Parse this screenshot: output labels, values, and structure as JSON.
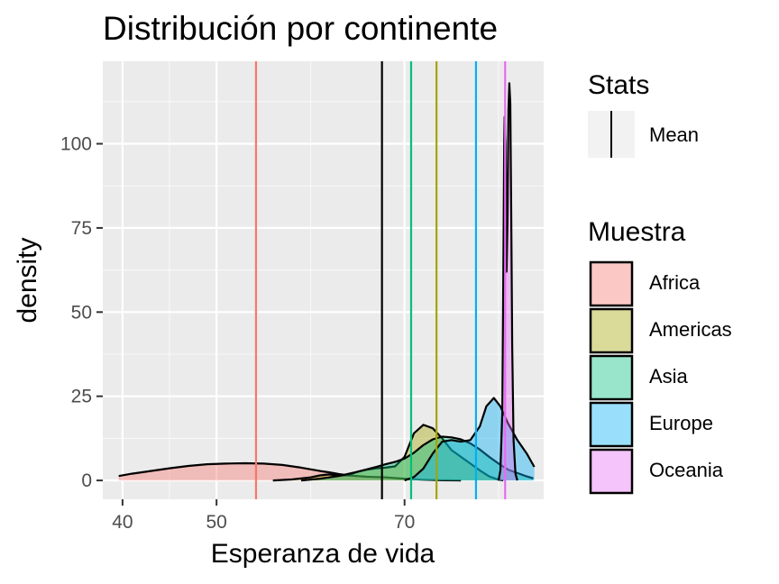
{
  "chart_data": {
    "type": "area",
    "title": "Distribución por continente",
    "xlabel": "Esperanza de vida",
    "ylabel": "density",
    "xlim": [
      37.9,
      84.8
    ],
    "ylim": [
      -5.6,
      124.5
    ],
    "x_ticks": [
      {
        "value": 40,
        "label": "40"
      },
      {
        "value": 50,
        "label": "50"
      },
      {
        "value": 70,
        "label": "70"
      }
    ],
    "x_minor_ticks": [
      45,
      60,
      80
    ],
    "y_ticks": [
      {
        "value": 0,
        "label": "0"
      },
      {
        "value": 25,
        "label": "25"
      },
      {
        "value": 50,
        "label": "50"
      },
      {
        "value": 75,
        "label": "75"
      },
      {
        "value": 100,
        "label": "100"
      }
    ],
    "y_minor_ticks": [
      12.5,
      37.5,
      62.5,
      87.5,
      112.5
    ],
    "grid": true,
    "panel_background": "#ebebeb",
    "legend_position": "right",
    "fill_opacity": 0.4,
    "series": [
      {
        "name": "Africa",
        "color": "#F8766D",
        "mean": 54.2,
        "points": [
          [
            39.6,
            1.3
          ],
          [
            41,
            2.0
          ],
          [
            43,
            2.8
          ],
          [
            45,
            3.6
          ],
          [
            47,
            4.3
          ],
          [
            49,
            4.8
          ],
          [
            51,
            5.0
          ],
          [
            53,
            5.1
          ],
          [
            55,
            5.0
          ],
          [
            57,
            4.6
          ],
          [
            59,
            3.8
          ],
          [
            61,
            2.8
          ],
          [
            62,
            2.4
          ],
          [
            63,
            1.9
          ],
          [
            64,
            1.5
          ],
          [
            66,
            1.1
          ],
          [
            68,
            0.9
          ],
          [
            70,
            0.5
          ],
          [
            72,
            0.2
          ],
          [
            74,
            0.05
          ],
          [
            76,
            0
          ]
        ]
      },
      {
        "name": "Americas",
        "color": "#A3A500",
        "mean": 73.4,
        "points": [
          [
            56,
            0
          ],
          [
            58,
            0.3
          ],
          [
            60,
            0.9
          ],
          [
            61,
            1.5
          ],
          [
            62,
            1.8
          ],
          [
            63,
            1.4
          ],
          [
            64,
            1.6
          ],
          [
            65,
            2.6
          ],
          [
            66,
            3.2
          ],
          [
            67,
            3.6
          ],
          [
            68,
            3.8
          ],
          [
            69,
            4.2
          ],
          [
            70,
            7.0
          ],
          [
            71,
            14
          ],
          [
            72,
            16.5
          ],
          [
            73,
            15.5
          ],
          [
            74,
            12.5
          ],
          [
            75,
            9.0
          ],
          [
            76,
            7.0
          ],
          [
            77,
            5.0
          ],
          [
            78,
            3.0
          ],
          [
            79,
            1.2
          ],
          [
            80,
            0.2
          ],
          [
            80.5,
            0
          ]
        ]
      },
      {
        "name": "Asia",
        "color": "#00BF7D",
        "mean": 70.7,
        "points": [
          [
            59,
            0
          ],
          [
            61,
            0.5
          ],
          [
            63,
            1.3
          ],
          [
            65,
            2.6
          ],
          [
            67,
            4.0
          ],
          [
            68,
            4.8
          ],
          [
            69,
            5.5
          ],
          [
            70,
            6.5
          ],
          [
            71,
            8.2
          ],
          [
            72,
            10.5
          ],
          [
            73,
            12.2
          ],
          [
            74,
            13.0
          ],
          [
            75,
            12.8
          ],
          [
            76,
            12.2
          ],
          [
            77,
            11.0
          ],
          [
            78,
            9.2
          ],
          [
            79,
            7.0
          ],
          [
            80,
            5.0
          ],
          [
            81,
            3.2
          ],
          [
            82,
            2.2
          ],
          [
            83,
            1.2
          ],
          [
            83.7,
            0.6
          ]
        ]
      },
      {
        "name": "Europe",
        "color": "#00B0F6",
        "mean": 77.6,
        "points": [
          [
            70,
            0
          ],
          [
            71,
            1.0
          ],
          [
            72,
            3.5
          ],
          [
            73,
            8.0
          ],
          [
            74,
            11.5
          ],
          [
            75,
            12.0
          ],
          [
            76,
            11.5
          ],
          [
            77,
            12.0
          ],
          [
            78,
            16.0
          ],
          [
            78.7,
            22.0
          ],
          [
            79.5,
            24.5
          ],
          [
            80.2,
            22.0
          ],
          [
            81,
            17.0
          ],
          [
            82,
            12.0
          ],
          [
            83,
            8.0
          ],
          [
            83.8,
            4.0
          ]
        ]
      },
      {
        "name": "Oceania",
        "color": "#E76BF3",
        "mean": 80.7,
        "points": [
          [
            80.0,
            0
          ],
          [
            80.2,
            3
          ],
          [
            80.4,
            20
          ],
          [
            80.5,
            60
          ],
          [
            80.6,
            100
          ],
          [
            80.65,
            108
          ],
          [
            80.75,
            100
          ],
          [
            80.85,
            62
          ],
          [
            80.95,
            78
          ],
          [
            81.05,
            110
          ],
          [
            81.15,
            118
          ],
          [
            81.25,
            112
          ],
          [
            81.35,
            80
          ],
          [
            81.45,
            40
          ],
          [
            81.6,
            12
          ],
          [
            81.8,
            2
          ],
          [
            82.0,
            0
          ]
        ]
      }
    ],
    "overall_mean": 67.6,
    "overall_mean_color": "#000000"
  },
  "legend": {
    "stats_title": "Stats",
    "stats_label": "Mean",
    "muestra_title": "Muestra",
    "items": [
      "Africa",
      "Americas",
      "Asia",
      "Europe",
      "Oceania"
    ]
  }
}
